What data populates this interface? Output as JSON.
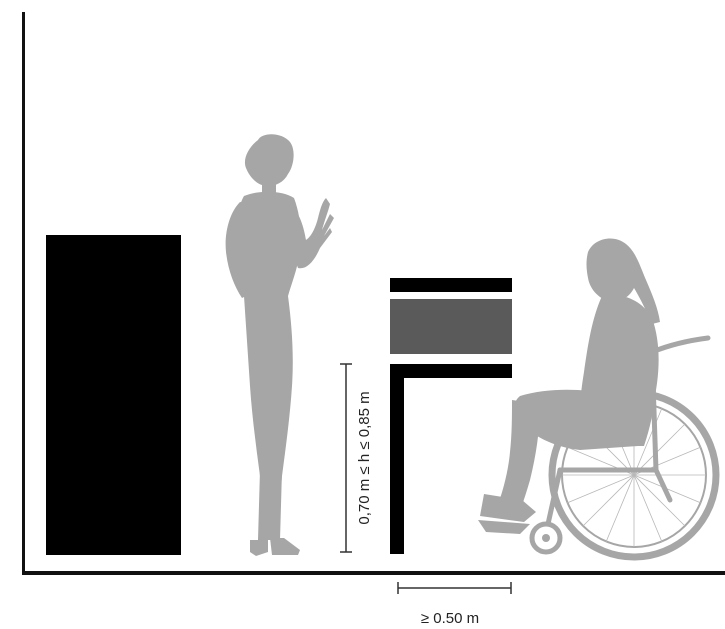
{
  "colors": {
    "background": "#ffffff",
    "wall_and_floor": "#111111",
    "figures": "#a6a6a6",
    "counter_black": "#000000",
    "counter_panel": "#5a5a5a",
    "dimension_lines": "#333333"
  },
  "annotations": {
    "height_range": "0,70 m ≤ h ≤ 0,85 m",
    "knee_depth": "≥ 0.50 m"
  },
  "figures": {
    "standing": "standing-person-silhouette",
    "wheelchair": "wheelchair-user-silhouette"
  }
}
